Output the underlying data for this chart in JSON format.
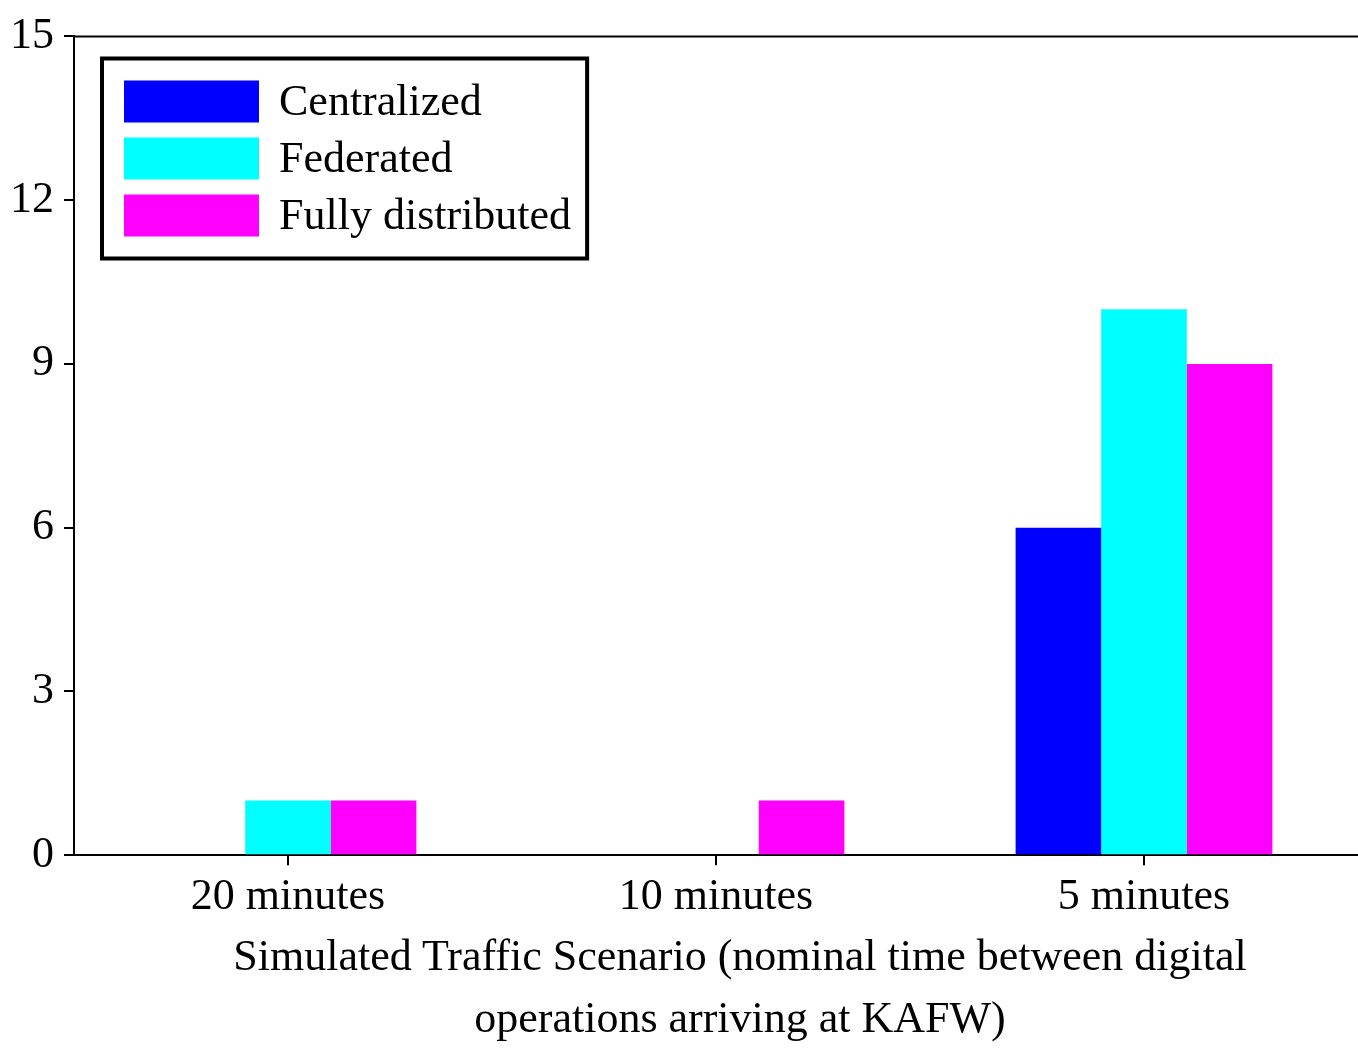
{
  "chart_data": {
    "type": "bar",
    "xlabel": "Simulated Traffic Scenario (nominal time between digital operations arriving at KAFW)",
    "categories": [
      "20 minutes",
      "10 minutes",
      "5 minutes"
    ],
    "series": [
      {
        "name": "Centralized",
        "color": "#0000ff",
        "values": [
          0,
          0,
          6
        ]
      },
      {
        "name": "Federated",
        "color": "#00ffff",
        "values": [
          1,
          0,
          10
        ]
      },
      {
        "name": "Fully distributed",
        "color": "#ff00ff",
        "values": [
          1,
          1,
          9
        ]
      }
    ],
    "ylim": [
      0,
      15
    ],
    "yticks": [
      0,
      3,
      6,
      9,
      12,
      15
    ],
    "grid": false,
    "legend": "top left"
  }
}
